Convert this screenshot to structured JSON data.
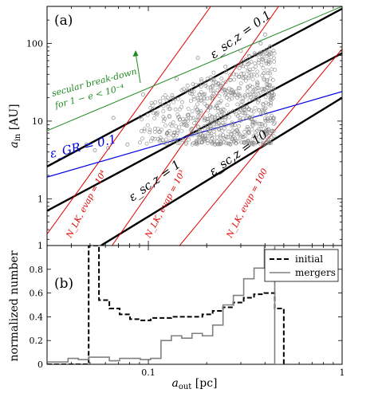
{
  "chart_data": [
    {
      "panel": "(a)",
      "type": "scatter",
      "xlim": [
        0.03,
        1.0
      ],
      "ylim": [
        0.25,
        300
      ],
      "xscale": "log",
      "yscale": "log",
      "ylabel": "a_in [AU]",
      "yticks": [
        {
          "v": 1,
          "label": "1"
        },
        {
          "v": 10,
          "label": "10"
        },
        {
          "v": 100,
          "label": "100"
        }
      ],
      "grid": false,
      "lines": [
        {
          "name": "eps_sc_1",
          "color": "#000000",
          "width": 2.4,
          "x1": 0.03,
          "y1": 0.7,
          "x2": 1.0,
          "y2": 75
        },
        {
          "name": "eps_sc_01",
          "color": "#000000",
          "width": 2.4,
          "x1": 0.03,
          "y1": 2.6,
          "x2": 1.0,
          "y2": 280
        },
        {
          "name": "eps_sc_10",
          "color": "#000000",
          "width": 2.4,
          "x1": 0.057,
          "y1": 0.25,
          "x2": 1.0,
          "y2": 20
        },
        {
          "name": "evap_10^4",
          "color": "#e00000",
          "width": 1.0,
          "x1": 0.03,
          "y1": 0.35,
          "x2": 0.21,
          "y2": 300
        },
        {
          "name": "evap_10^3",
          "color": "#e00000",
          "width": 1.0,
          "x1": 0.065,
          "y1": 0.25,
          "x2": 0.47,
          "y2": 300
        },
        {
          "name": "evap_100",
          "color": "#e00000",
          "width": 1.0,
          "x1": 0.145,
          "y1": 0.25,
          "x2": 1.0,
          "y2": 85
        },
        {
          "name": "eps_GR",
          "color": "#0000e0",
          "width": 1.2,
          "x1": 0.03,
          "y1": 1.9,
          "x2": 1.0,
          "y2": 24
        },
        {
          "name": "secular",
          "color": "#228b22",
          "width": 1.0,
          "x1": 0.03,
          "y1": 7.5,
          "x2": 1.0,
          "y2": 300
        }
      ],
      "annotations": [
        {
          "text": "(a)",
          "kind": "panel"
        },
        {
          "text": "ε_sc,z = 0.1"
        },
        {
          "text": "ε_sc,z = 1"
        },
        {
          "text": "ε_sc,z = 10"
        },
        {
          "text": "ε_GR = 0.1"
        },
        {
          "text": "secular break-down"
        },
        {
          "text": "for 1 − e < 10⁻⁴"
        },
        {
          "text": "N_LK, evap = 10⁴"
        },
        {
          "text": "N_LK, evap = 10³"
        },
        {
          "text": "N_LK, evap = 100"
        }
      ],
      "cluster": {
        "x_min": 0.085,
        "x_max": 0.45,
        "y_min": 5,
        "y_max": 100,
        "marker": "open-circle",
        "color": "#888888"
      },
      "points": [
        [
          0.062,
          4.5
        ],
        [
          0.078,
          5.0
        ],
        [
          0.048,
          5.0
        ],
        [
          0.053,
          4.2
        ],
        [
          0.066,
          11.0
        ],
        [
          0.094,
          22.0
        ],
        [
          0.105,
          6.0
        ],
        [
          0.115,
          18.0
        ],
        [
          0.125,
          7.0
        ],
        [
          0.14,
          35.0
        ],
        [
          0.16,
          12.0
        ],
        [
          0.18,
          65.0
        ],
        [
          0.21,
          8.0
        ],
        [
          0.25,
          50.0
        ],
        [
          0.3,
          80.0
        ],
        [
          0.33,
          14.0
        ],
        [
          0.38,
          100.0
        ],
        [
          0.4,
          130.0
        ]
      ]
    },
    {
      "panel": "(b)",
      "type": "step",
      "xlim": [
        0.03,
        1.0
      ],
      "ylim": [
        0,
        1
      ],
      "xscale": "log",
      "xlabel": "a_out [pc]",
      "ylabel": "normalized number",
      "xticks": [
        {
          "v": 0.1,
          "label": "0.1"
        },
        {
          "v": 1,
          "label": "1"
        }
      ],
      "yticks": [
        {
          "v": 0,
          "label": "0"
        },
        {
          "v": 0.2,
          "label": "0.2"
        },
        {
          "v": 0.4,
          "label": "0.4"
        },
        {
          "v": 0.6,
          "label": "0.6"
        },
        {
          "v": 0.8,
          "label": "0.8"
        },
        {
          "v": 1,
          "label": "1"
        }
      ],
      "legend": "top-right",
      "bin_edges": [
        0.03,
        0.034,
        0.0385,
        0.0435,
        0.0492,
        0.0556,
        0.0629,
        0.0711,
        0.0804,
        0.0909,
        0.1028,
        0.1162,
        0.1314,
        0.1486,
        0.168,
        0.19,
        0.2148,
        0.2429,
        0.2746,
        0.3105,
        0.3511,
        0.397,
        0.4489,
        0.5
      ],
      "series": [
        {
          "name": "initial",
          "style": "dashed",
          "color": "#000000",
          "width": 2,
          "values": [
            0,
            0,
            0,
            0,
            1.0,
            0.54,
            0.47,
            0.42,
            0.38,
            0.37,
            0.39,
            0.39,
            0.4,
            0.4,
            0.4,
            0.42,
            0.45,
            0.48,
            0.52,
            0.56,
            0.59,
            0.6,
            0.47
          ]
        },
        {
          "name": "mergers",
          "style": "solid",
          "color": "#808080",
          "width": 1.6,
          "values": [
            0.02,
            0.02,
            0.05,
            0.04,
            0.06,
            0.06,
            0.03,
            0.05,
            0.05,
            0.04,
            0.05,
            0.2,
            0.24,
            0.22,
            0.26,
            0.24,
            0.33,
            0.5,
            0.58,
            0.72,
            0.81,
            1.0,
            0
          ]
        }
      ]
    }
  ]
}
